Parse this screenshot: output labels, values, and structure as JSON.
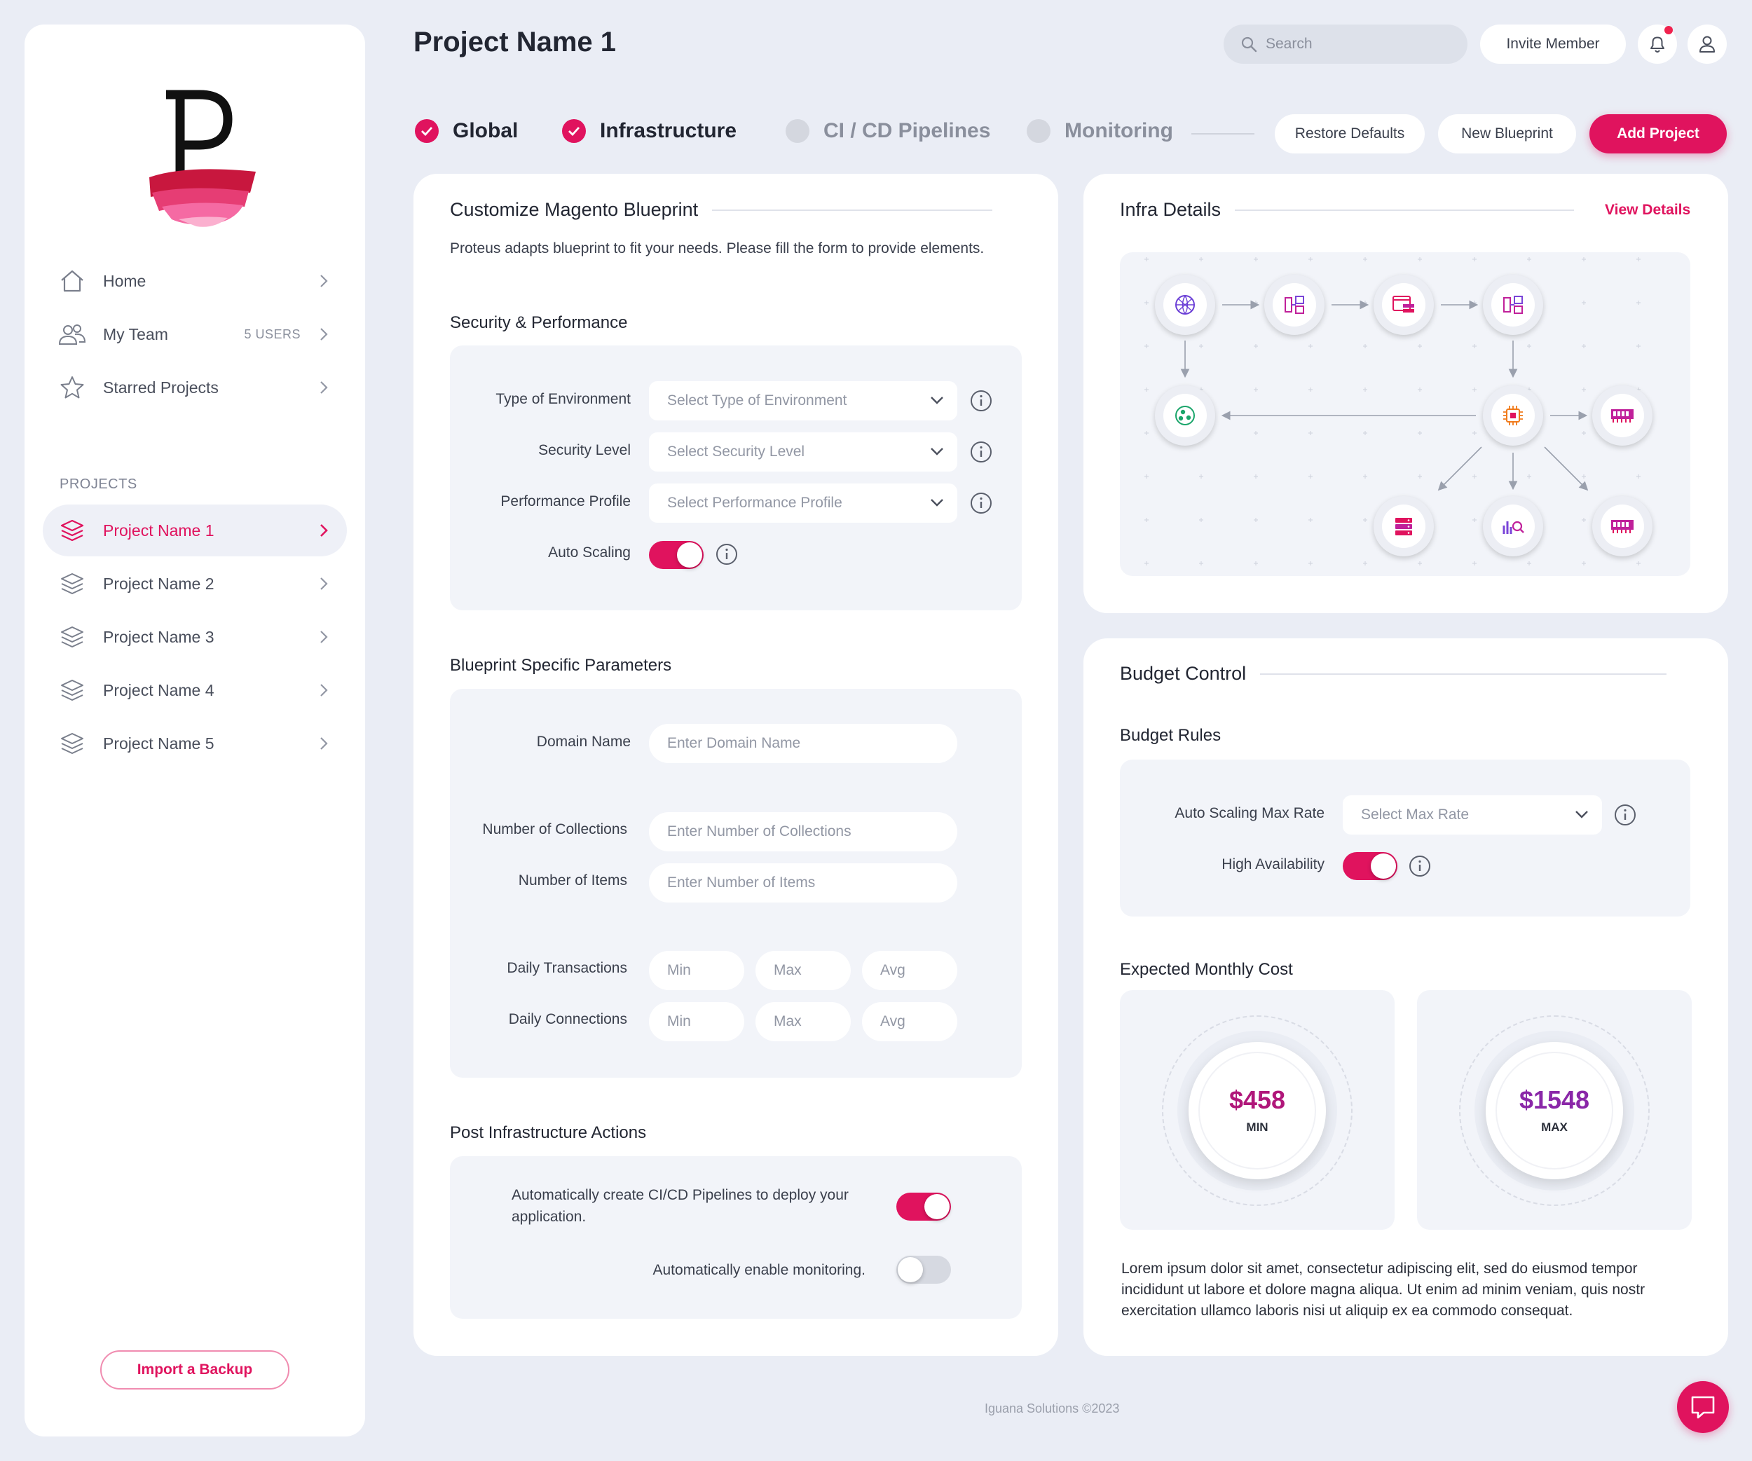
{
  "sidebar": {
    "nav": [
      {
        "label": "Home",
        "icon": "home-icon"
      },
      {
        "label": "My Team",
        "icon": "team-icon",
        "count": "5 USERS"
      },
      {
        "label": "Starred Projects",
        "icon": "star-icon"
      }
    ],
    "projects_label": "PROJECTS",
    "projects": [
      {
        "label": "Project Name 1",
        "active": true
      },
      {
        "label": "Project Name 2"
      },
      {
        "label": "Project Name 3"
      },
      {
        "label": "Project Name 4"
      },
      {
        "label": "Project Name 5"
      }
    ],
    "import_label": "Import a Backup"
  },
  "header": {
    "title": "Project Name 1",
    "search_placeholder": "Search",
    "invite_label": "Invite Member"
  },
  "steps": [
    {
      "label": "Global",
      "state": "done"
    },
    {
      "label": "Infrastructure",
      "state": "done"
    },
    {
      "label": "CI / CD Pipelines",
      "state": "todo"
    },
    {
      "label": "Monitoring",
      "state": "todo"
    }
  ],
  "actions": {
    "restore": "Restore Defaults",
    "new_blueprint": "New Blueprint",
    "add_project": "Add Project"
  },
  "blueprint": {
    "title": "Customize Magento Blueprint",
    "description": "Proteus adapts blueprint to fit your needs. Please fill the form to provide elements.",
    "security": {
      "title": "Security & Performance",
      "env_label": "Type of Environment",
      "env_placeholder": "Select Type of Environment",
      "sec_label": "Security Level",
      "sec_placeholder": "Select Security Level",
      "perf_label": "Performance Profile",
      "perf_placeholder": "Select Performance Profile",
      "autoscale_label": "Auto Scaling"
    },
    "params": {
      "title": "Blueprint Specific Parameters",
      "domain_label": "Domain Name",
      "domain_placeholder": "Enter Domain Name",
      "collections_label": "Number of Collections",
      "collections_placeholder": "Enter Number of Collections",
      "items_label": "Number of Items",
      "items_placeholder": "Enter Number of Items",
      "transactions_label": "Daily Transactions",
      "connections_label": "Daily Connections",
      "min": "Min",
      "max": "Max",
      "avg": "Avg"
    },
    "post": {
      "title": "Post Infrastructure Actions",
      "cicd_text": "Automatically create CI/CD Pipelines to deploy your application.",
      "monitoring_text": "Automatically enable monitoring."
    }
  },
  "infra": {
    "title": "Infra Details",
    "view_details": "View Details"
  },
  "budget": {
    "title": "Budget Control",
    "rules_title": "Budget Rules",
    "max_rate_label": "Auto Scaling Max Rate",
    "max_rate_placeholder": "Select Max Rate",
    "ha_label": "High Availability",
    "cost_title": "Expected Monthly Cost",
    "min_value": "$458",
    "min_label": "MIN",
    "max_value": "$1548",
    "max_label": "MAX",
    "lorem": "Lorem ipsum dolor sit amet, consectetur adipiscing elit, sed do eiusmod tempor incididunt ut labore et dolore magna aliqua. Ut enim ad minim veniam, quis nostr exercitation ullamco laboris nisi ut aliquip ex ea commodo consequat."
  },
  "footer": "Iguana Solutions ©2023",
  "colors": {
    "accent": "#e0135e",
    "background": "#eaedf5",
    "panel": "#f2f4f9"
  }
}
